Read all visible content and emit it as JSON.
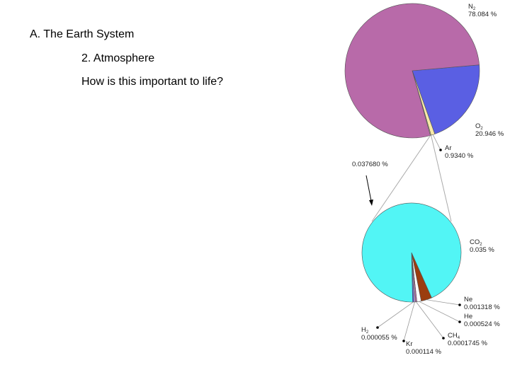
{
  "slide": {
    "heading": "A. The Earth System",
    "subheading": "2. Atmosphere",
    "question": "How is this important to life?"
  },
  "chart_data": [
    {
      "type": "pie",
      "unit": "%",
      "slices": [
        {
          "label": "N2",
          "value": 78.084,
          "value_text": "78.084 %",
          "color": "#b86aa9"
        },
        {
          "label": "O2",
          "value": 20.946,
          "value_text": "20.946 %",
          "color": "#5a5fe3"
        },
        {
          "label": "Ar",
          "value": 0.934,
          "value_text": "0.9340 %",
          "color": "#f7e9a8"
        },
        {
          "label": "",
          "value": 0.03768,
          "value_text": "0.037680 %",
          "color": "#f7e9a8"
        }
      ],
      "callout": "0.037680 %"
    },
    {
      "type": "pie",
      "unit": "%",
      "slices": [
        {
          "label": "CO2",
          "value": 0.035,
          "value_text": "0.035 %",
          "color": "#52f5f5"
        },
        {
          "label": "Ne",
          "value": 0.001318,
          "value_text": "0.001318 %",
          "color": "#9b3d0f"
        },
        {
          "label": "He",
          "value": 0.000524,
          "value_text": "0.000524 %",
          "color": "#ffffff"
        },
        {
          "label": "CH4",
          "value": 0.0001745,
          "value_text": "0.0001745 %",
          "color": "#b86aa9"
        },
        {
          "label": "Kr",
          "value": 0.000114,
          "value_text": "0.000114 %",
          "color": "#c8b4e6"
        },
        {
          "label": "H2",
          "value": 5.5e-05,
          "value_text": "0.000055 %",
          "color": "#5a5fe3"
        }
      ]
    }
  ]
}
